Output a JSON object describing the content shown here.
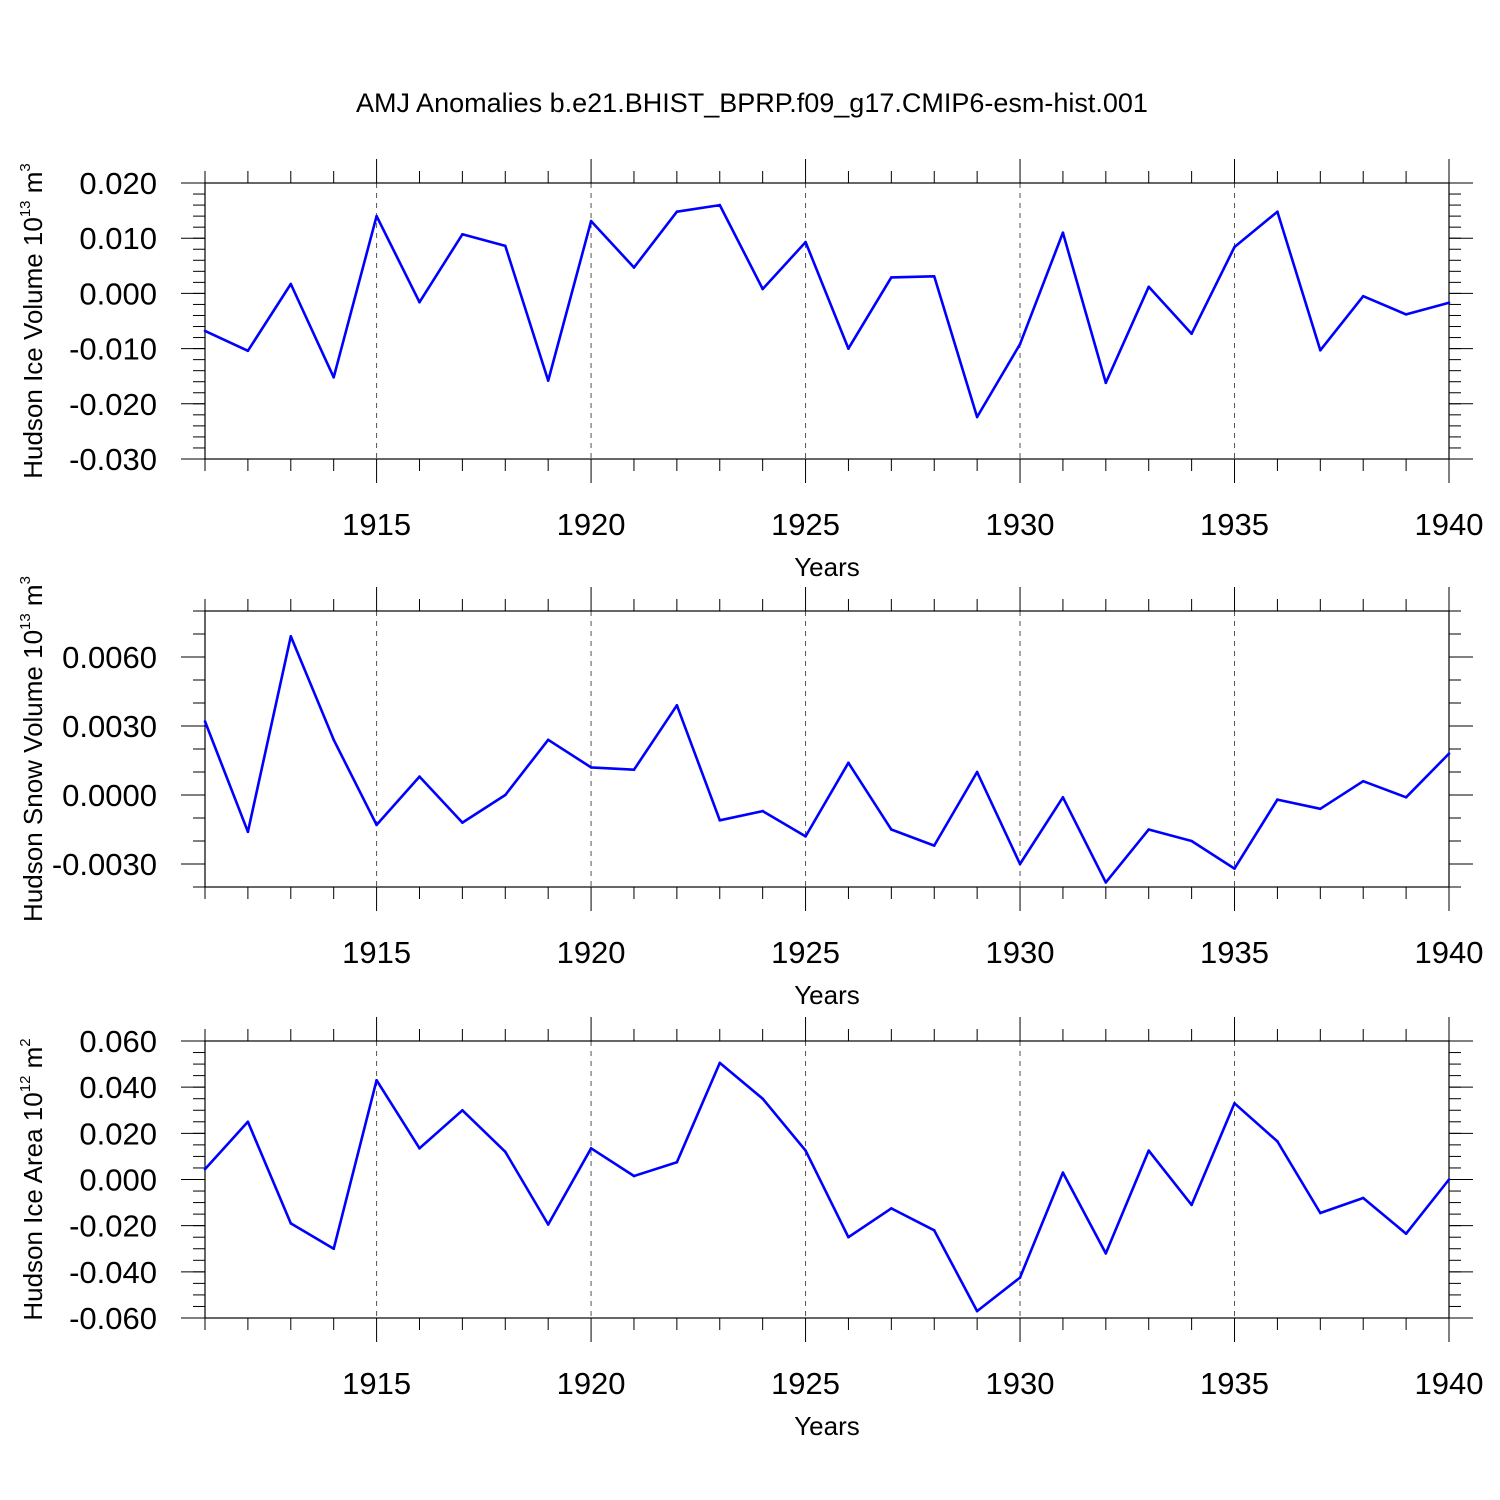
{
  "title": "AMJ Anomalies b.e21.BHIST_BPRP.f09_g17.CMIP6-esm-hist.001",
  "chart_data": [
    {
      "type": "line",
      "title": "",
      "xlabel": "Years",
      "ylabel": "Hudson Ice Volume 10",
      "ylabel_exp": "13",
      "ylabel_unit": "m",
      "ylabel_unit_exp": "3",
      "xlim": [
        1911,
        1940
      ],
      "ylim": [
        -0.03,
        0.02
      ],
      "yticks": [
        -0.03,
        -0.02,
        -0.01,
        0.0,
        0.01,
        0.02
      ],
      "ytick_labels": [
        "-0.030",
        "-0.020",
        "-0.010",
        "0.000",
        "0.010",
        "0.020"
      ],
      "yminor_step": 0.002,
      "xticks": [
        1915,
        1920,
        1925,
        1930,
        1935,
        1940
      ],
      "xtick_labels": [
        "1915",
        "1920",
        "1925",
        "1930",
        "1935",
        "1940"
      ],
      "grid": "x-major-dashed",
      "line_color": "#0000ff",
      "series": [
        {
          "name": "Hudson Ice Volume",
          "x": [
            1911,
            1912,
            1913,
            1914,
            1915,
            1916,
            1917,
            1918,
            1919,
            1920,
            1921,
            1922,
            1923,
            1924,
            1925,
            1926,
            1927,
            1928,
            1929,
            1930,
            1931,
            1932,
            1933,
            1934,
            1935,
            1936,
            1937,
            1938,
            1939,
            1940
          ],
          "values": [
            -0.0068,
            -0.0104,
            0.0017,
            -0.0152,
            0.014,
            -0.0016,
            0.0107,
            0.0086,
            -0.0158,
            0.0131,
            0.0047,
            0.0148,
            0.016,
            0.0008,
            0.0093,
            -0.01,
            0.0029,
            0.0031,
            -0.0224,
            -0.0092,
            0.011,
            -0.0162,
            0.0012,
            -0.0073,
            0.0084,
            0.0148,
            -0.0103,
            -0.0005,
            -0.0038,
            -0.0017
          ]
        }
      ]
    },
    {
      "type": "line",
      "title": "",
      "xlabel": "Years",
      "ylabel": "Hudson Snow Volume 10",
      "ylabel_exp": "13",
      "ylabel_unit": "m",
      "ylabel_unit_exp": "3",
      "xlim": [
        1911,
        1940
      ],
      "ylim": [
        -0.004,
        0.008
      ],
      "yticks": [
        -0.003,
        0.0,
        0.003,
        0.006
      ],
      "ytick_labels": [
        "-0.0030",
        "0.0000",
        "0.0030",
        "0.0060"
      ],
      "yminor_step": 0.001,
      "xticks": [
        1915,
        1920,
        1925,
        1930,
        1935,
        1940
      ],
      "xtick_labels": [
        "1915",
        "1920",
        "1925",
        "1930",
        "1935",
        "1940"
      ],
      "grid": "x-major-dashed",
      "line_color": "#0000ff",
      "series": [
        {
          "name": "Hudson Snow Volume",
          "x": [
            1911,
            1912,
            1913,
            1914,
            1915,
            1916,
            1917,
            1918,
            1919,
            1920,
            1921,
            1922,
            1923,
            1924,
            1925,
            1926,
            1927,
            1928,
            1929,
            1930,
            1931,
            1932,
            1933,
            1934,
            1935,
            1936,
            1937,
            1938,
            1939,
            1940
          ],
          "values": [
            0.0032,
            -0.0016,
            0.0069,
            0.0024,
            -0.0013,
            0.0008,
            -0.0012,
            0.0,
            0.0024,
            0.0012,
            0.0011,
            0.0039,
            -0.0011,
            -0.0007,
            -0.0018,
            0.0014,
            -0.0015,
            -0.0022,
            0.001,
            -0.003,
            -0.0001,
            -0.0038,
            -0.0015,
            -0.002,
            -0.0032,
            -0.0002,
            -0.0006,
            0.0006,
            -0.0001,
            0.0018
          ]
        }
      ]
    },
    {
      "type": "line",
      "title": "",
      "xlabel": "Years",
      "ylabel": "Hudson Ice Area 10",
      "ylabel_exp": "12",
      "ylabel_unit": "m",
      "ylabel_unit_exp": "2",
      "xlim": [
        1911,
        1940
      ],
      "ylim": [
        -0.06,
        0.06
      ],
      "yticks": [
        -0.06,
        -0.04,
        -0.02,
        0.0,
        0.02,
        0.04,
        0.06
      ],
      "ytick_labels": [
        "-0.060",
        "-0.040",
        "-0.020",
        "0.000",
        "0.020",
        "0.040",
        "0.060"
      ],
      "yminor_step": 0.005,
      "xticks": [
        1915,
        1920,
        1925,
        1930,
        1935,
        1940
      ],
      "xtick_labels": [
        "1915",
        "1920",
        "1925",
        "1930",
        "1935",
        "1940"
      ],
      "grid": "x-major-dashed",
      "line_color": "#0000ff",
      "series": [
        {
          "name": "Hudson Ice Area",
          "x": [
            1911,
            1912,
            1913,
            1914,
            1915,
            1916,
            1917,
            1918,
            1919,
            1920,
            1921,
            1922,
            1923,
            1924,
            1925,
            1926,
            1927,
            1928,
            1929,
            1930,
            1931,
            1932,
            1933,
            1934,
            1935,
            1936,
            1937,
            1938,
            1939,
            1940
          ],
          "values": [
            0.0045,
            0.025,
            -0.019,
            -0.03,
            0.043,
            0.0135,
            0.03,
            0.012,
            -0.0195,
            0.0135,
            0.0015,
            0.0075,
            0.0505,
            0.035,
            0.0125,
            -0.025,
            -0.0125,
            -0.022,
            -0.057,
            -0.0425,
            0.003,
            -0.032,
            0.0125,
            -0.011,
            0.033,
            0.0165,
            -0.0145,
            -0.008,
            -0.0235,
            0.0
          ]
        }
      ]
    }
  ]
}
